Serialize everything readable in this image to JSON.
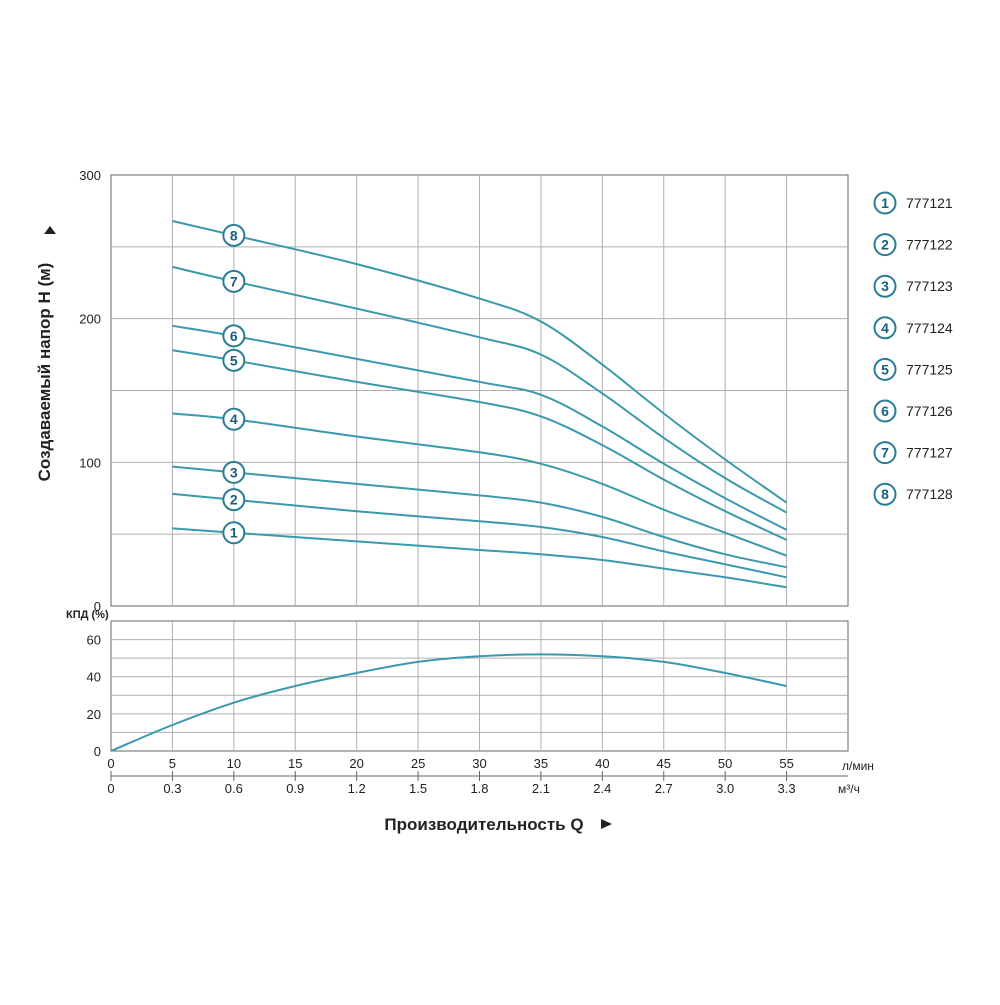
{
  "chart_data": {
    "type": "line",
    "colors": {
      "curve": "#3a9aad",
      "grid": "#b0b0b0",
      "frame": "#666666",
      "marker_stroke": "#2a7d95"
    },
    "x_label": "Производительность Q",
    "x_units": {
      "primary": "л/мин",
      "secondary": "м³/ч"
    },
    "x_ticks": [
      0,
      5,
      10,
      15,
      20,
      25,
      30,
      35,
      40,
      45,
      50,
      55
    ],
    "x_ticks_m3h": [
      "0",
      "0.3",
      "0.6",
      "0.9",
      "1.2",
      "1.5",
      "1.8",
      "2.1",
      "2.4",
      "2.7",
      "3.0",
      "3.3"
    ],
    "xlim": [
      0,
      60
    ],
    "head": {
      "ylabel": "Создаваемый напор H (м)",
      "ylim": [
        0,
        300
      ],
      "y_ticks": [
        0,
        100,
        200,
        300
      ],
      "grid_y": [
        50,
        100,
        150,
        200,
        250
      ],
      "series": [
        {
          "name": "777121",
          "marker": "1",
          "x": [
            5,
            10,
            20,
            30,
            35,
            40,
            45,
            50,
            55
          ],
          "y": [
            54,
            51,
            45,
            39,
            36,
            32,
            26,
            20,
            13
          ]
        },
        {
          "name": "777122",
          "marker": "2",
          "x": [
            5,
            10,
            20,
            30,
            35,
            40,
            45,
            50,
            55
          ],
          "y": [
            78,
            74,
            66,
            59,
            55,
            48,
            38,
            29,
            20
          ]
        },
        {
          "name": "777123",
          "marker": "3",
          "x": [
            5,
            10,
            20,
            30,
            35,
            40,
            45,
            50,
            55
          ],
          "y": [
            97,
            93,
            85,
            77,
            72,
            62,
            48,
            36,
            27
          ]
        },
        {
          "name": "777124",
          "marker": "4",
          "x": [
            5,
            10,
            20,
            30,
            35,
            40,
            45,
            50,
            55
          ],
          "y": [
            134,
            130,
            118,
            107,
            99,
            85,
            67,
            51,
            35
          ]
        },
        {
          "name": "777125",
          "marker": "5",
          "x": [
            5,
            10,
            20,
            30,
            35,
            40,
            45,
            50,
            55
          ],
          "y": [
            178,
            171,
            156,
            142,
            132,
            112,
            88,
            66,
            46
          ]
        },
        {
          "name": "777126",
          "marker": "6",
          "x": [
            5,
            10,
            20,
            30,
            35,
            40,
            45,
            50,
            55
          ],
          "y": [
            195,
            188,
            172,
            156,
            147,
            125,
            99,
            75,
            53
          ]
        },
        {
          "name": "777127",
          "marker": "7",
          "x": [
            5,
            10,
            20,
            30,
            35,
            40,
            45,
            50,
            55
          ],
          "y": [
            236,
            226,
            207,
            187,
            175,
            148,
            117,
            89,
            65
          ]
        },
        {
          "name": "777128",
          "marker": "8",
          "x": [
            5,
            10,
            20,
            30,
            35,
            40,
            45,
            50,
            55
          ],
          "y": [
            268,
            258,
            238,
            214,
            198,
            168,
            134,
            102,
            72
          ]
        }
      ]
    },
    "efficiency": {
      "ylabel": "КПД (%)",
      "ylim": [
        0,
        70
      ],
      "y_ticks": [
        0,
        20,
        40,
        60
      ],
      "grid_y": [
        10,
        20,
        30,
        40,
        50,
        60
      ],
      "series": [
        {
          "name": "КПД",
          "x": [
            0,
            5,
            10,
            15,
            20,
            25,
            30,
            35,
            40,
            45,
            50,
            55
          ],
          "y": [
            0,
            14,
            26,
            35,
            42,
            48,
            51,
            52,
            51,
            48,
            42,
            35
          ]
        }
      ]
    }
  }
}
